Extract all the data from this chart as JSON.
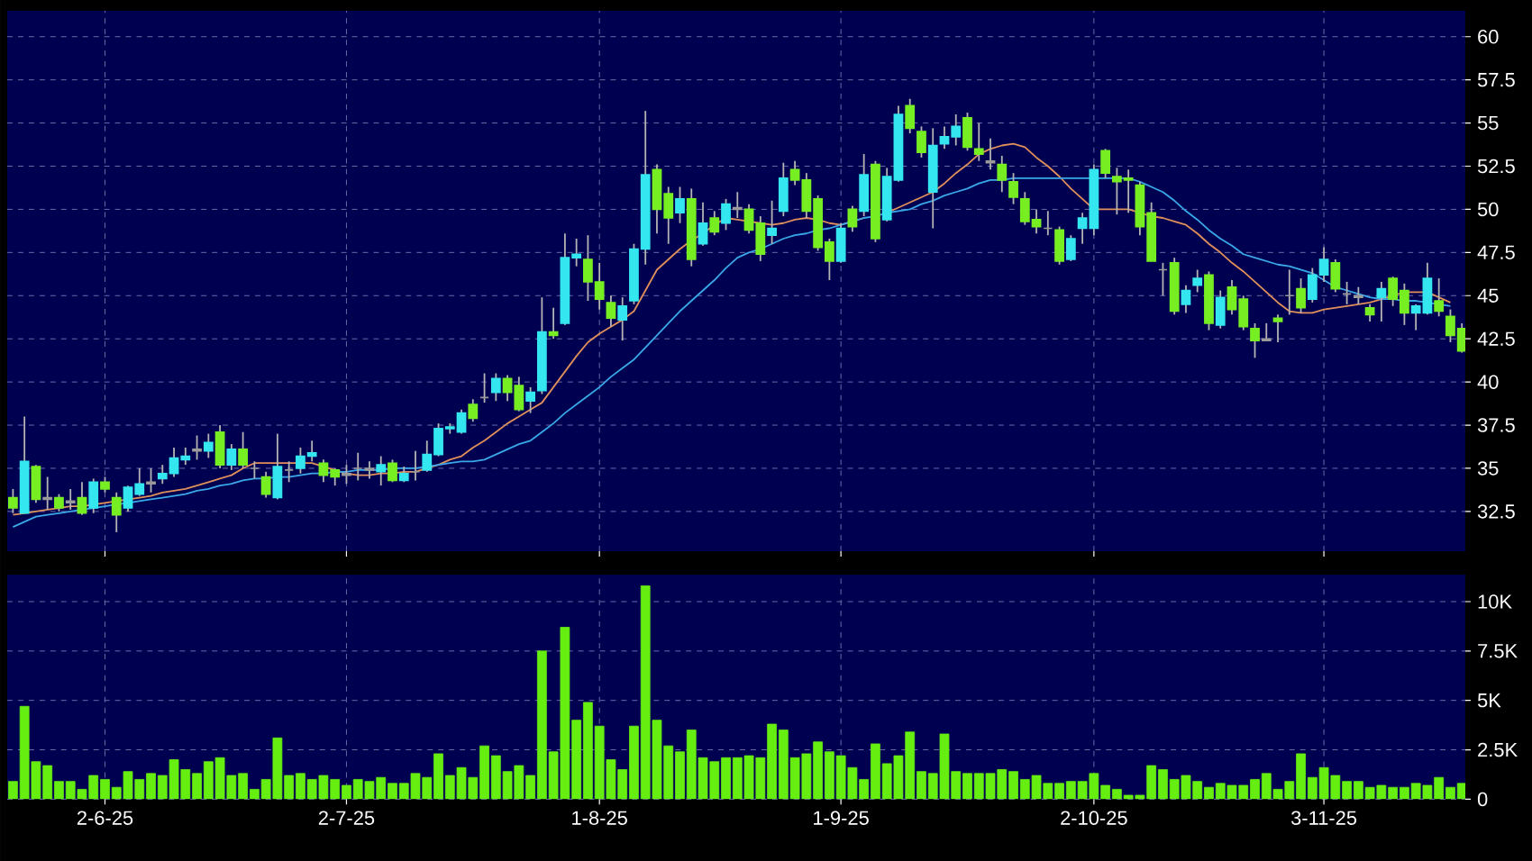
{
  "chart_data": [
    {
      "type": "candlestick",
      "tick_labels": "y",
      "grid": true,
      "categories": [
        null,
        null,
        null,
        null,
        null,
        null,
        null,
        null,
        null,
        null,
        null,
        null,
        null,
        null,
        null,
        null,
        null,
        null,
        null,
        null,
        null,
        null,
        null,
        null,
        null,
        null,
        null,
        null,
        null,
        null,
        null,
        null,
        null,
        null,
        null,
        null,
        null,
        null,
        null,
        null,
        null,
        null,
        null,
        null,
        null,
        null,
        null,
        null,
        null,
        null,
        null,
        null,
        null,
        null,
        null,
        null,
        null,
        null,
        null,
        null,
        null,
        null,
        null,
        null,
        null,
        null,
        null,
        null,
        null,
        null,
        null,
        null,
        null,
        null,
        null,
        null,
        null,
        null,
        null,
        null,
        null,
        null,
        null,
        null,
        null,
        null,
        null,
        null,
        null,
        null,
        null,
        null,
        null,
        null,
        null,
        null,
        null,
        null,
        null,
        null,
        null,
        null,
        null,
        null,
        null,
        null,
        null,
        null,
        null,
        null,
        null,
        null,
        null,
        null,
        null,
        null,
        null,
        null,
        null,
        null,
        null,
        null,
        null,
        null,
        null,
        null,
        null
      ],
      "ohlc": [
        [
          33.3,
          33.8,
          32.4,
          32.7
        ],
        [
          32.4,
          38.0,
          32.4,
          35.4
        ],
        [
          35.1,
          35.2,
          33.0,
          33.2
        ],
        [
          33.3,
          34.5,
          32.6,
          33.2
        ],
        [
          33.3,
          33.5,
          32.5,
          32.7
        ],
        [
          33.0,
          33.8,
          32.6,
          33.1
        ],
        [
          33.3,
          34.2,
          32.3,
          32.4
        ],
        [
          32.7,
          34.4,
          32.4,
          34.2
        ],
        [
          34.2,
          34.5,
          33.6,
          33.8
        ],
        [
          33.3,
          33.6,
          31.3,
          32.3
        ],
        [
          32.7,
          34.0,
          32.5,
          33.9
        ],
        [
          33.5,
          35.0,
          33.4,
          34.1
        ],
        [
          34.1,
          35.0,
          33.6,
          34.2
        ],
        [
          34.4,
          35.2,
          34.1,
          34.7
        ],
        [
          34.7,
          36.2,
          34.5,
          35.6
        ],
        [
          35.5,
          36.2,
          35.2,
          35.7
        ],
        [
          36.0,
          36.9,
          35.5,
          36.1
        ],
        [
          36.0,
          37.0,
          35.6,
          36.5
        ],
        [
          37.1,
          37.5,
          35.0,
          35.2
        ],
        [
          35.2,
          36.4,
          34.9,
          36.1
        ],
        [
          36.1,
          37.1,
          35.0,
          35.2
        ],
        [
          35.0,
          35.4,
          34.4,
          35.0
        ],
        [
          34.5,
          34.8,
          33.3,
          33.5
        ],
        [
          33.3,
          37.0,
          33.2,
          35.1
        ],
        [
          34.9,
          35.4,
          34.2,
          34.9
        ],
        [
          35.0,
          36.2,
          34.7,
          35.7
        ],
        [
          35.7,
          36.6,
          35.4,
          35.9
        ],
        [
          35.3,
          35.5,
          34.2,
          34.6
        ],
        [
          34.9,
          35.0,
          34.0,
          34.5
        ],
        [
          34.7,
          35.2,
          34.1,
          34.6
        ],
        [
          35.0,
          35.9,
          34.3,
          35.0
        ],
        [
          34.9,
          35.4,
          34.4,
          35.0
        ],
        [
          34.8,
          35.7,
          34.0,
          35.2
        ],
        [
          35.3,
          35.5,
          34.2,
          34.3
        ],
        [
          34.3,
          35.1,
          34.2,
          34.7
        ],
        [
          34.8,
          36.0,
          34.3,
          34.8
        ],
        [
          34.9,
          36.6,
          34.8,
          35.8
        ],
        [
          35.8,
          37.6,
          35.7,
          37.3
        ],
        [
          37.3,
          37.6,
          37.0,
          37.4
        ],
        [
          37.1,
          38.4,
          37.0,
          38.2
        ],
        [
          38.7,
          39.0,
          37.7,
          37.9
        ],
        [
          39.1,
          40.5,
          38.8,
          39.1
        ],
        [
          39.4,
          40.5,
          38.9,
          40.2
        ],
        [
          40.2,
          40.4,
          38.9,
          39.4
        ],
        [
          39.8,
          40.3,
          38.3,
          38.4
        ],
        [
          38.9,
          39.7,
          38.2,
          39.4
        ],
        [
          39.5,
          44.9,
          39.3,
          42.9
        ],
        [
          42.9,
          44.3,
          42.5,
          42.7
        ],
        [
          43.4,
          48.6,
          43.3,
          47.2
        ],
        [
          47.2,
          48.3,
          46.7,
          47.4
        ],
        [
          47.1,
          48.5,
          44.7,
          45.8
        ],
        [
          45.8,
          46.9,
          44.2,
          44.8
        ],
        [
          44.6,
          45.0,
          43.2,
          43.7
        ],
        [
          43.6,
          44.9,
          42.4,
          44.4
        ],
        [
          44.7,
          48.0,
          44.5,
          47.7
        ],
        [
          47.7,
          55.7,
          46.8,
          52.0
        ],
        [
          52.3,
          52.6,
          48.6,
          50.0
        ],
        [
          50.9,
          51.3,
          48.0,
          49.5
        ],
        [
          49.8,
          51.3,
          49.2,
          50.6
        ],
        [
          50.6,
          51.2,
          46.7,
          47.1
        ],
        [
          48.0,
          50.4,
          47.9,
          49.2
        ],
        [
          49.5,
          49.9,
          48.5,
          48.7
        ],
        [
          49.2,
          50.6,
          48.8,
          50.3
        ],
        [
          50.1,
          51.0,
          49.5,
          50.0
        ],
        [
          50.0,
          50.3,
          48.6,
          48.8
        ],
        [
          49.2,
          49.6,
          47.0,
          47.4
        ],
        [
          48.5,
          50.5,
          48.0,
          48.9
        ],
        [
          49.9,
          52.7,
          49.6,
          51.8
        ],
        [
          52.3,
          52.8,
          51.4,
          51.7
        ],
        [
          51.7,
          52.1,
          49.5,
          49.9
        ],
        [
          50.6,
          50.8,
          47.6,
          47.8
        ],
        [
          48.1,
          48.3,
          45.9,
          47.0
        ],
        [
          47.0,
          49.2,
          46.9,
          48.9
        ],
        [
          50.0,
          50.2,
          48.7,
          49.0
        ],
        [
          49.9,
          53.2,
          49.6,
          52.0
        ],
        [
          52.6,
          52.8,
          48.1,
          48.3
        ],
        [
          49.4,
          52.4,
          49.3,
          51.9
        ],
        [
          51.7,
          56.0,
          51.6,
          55.5
        ],
        [
          56.0,
          56.4,
          54.4,
          54.7
        ],
        [
          54.5,
          54.8,
          53.0,
          53.3
        ],
        [
          51.0,
          54.7,
          48.9,
          53.7
        ],
        [
          53.8,
          54.8,
          53.5,
          54.2
        ],
        [
          54.2,
          55.5,
          53.7,
          54.8
        ],
        [
          55.3,
          55.6,
          53.4,
          53.6
        ],
        [
          53.5,
          55.0,
          52.8,
          53.2
        ],
        [
          52.8,
          54.1,
          52.3,
          52.7
        ],
        [
          52.6,
          53.1,
          51.0,
          51.7
        ],
        [
          51.6,
          52.1,
          50.3,
          50.7
        ],
        [
          50.6,
          51.0,
          49.1,
          49.3
        ],
        [
          49.4,
          50.0,
          48.6,
          49.0
        ],
        [
          48.9,
          49.9,
          48.5,
          48.9
        ],
        [
          48.8,
          49.0,
          46.8,
          47.0
        ],
        [
          47.1,
          48.5,
          47.0,
          48.3
        ],
        [
          48.9,
          49.8,
          48.0,
          49.5
        ],
        [
          48.9,
          52.6,
          48.5,
          52.3
        ],
        [
          53.4,
          53.5,
          51.8,
          52.1
        ],
        [
          51.9,
          52.4,
          49.7,
          51.6
        ],
        [
          51.8,
          52.3,
          49.8,
          51.7
        ],
        [
          51.4,
          51.6,
          48.5,
          49.0
        ],
        [
          49.8,
          50.4,
          47.0,
          47.0
        ],
        [
          46.5,
          46.9,
          45.0,
          46.5
        ],
        [
          46.9,
          47.2,
          43.9,
          44.1
        ],
        [
          44.5,
          45.6,
          44.0,
          45.3
        ],
        [
          45.6,
          46.5,
          45.2,
          46.0
        ],
        [
          46.2,
          46.4,
          43.0,
          43.4
        ],
        [
          43.3,
          45.3,
          43.1,
          44.9
        ],
        [
          45.5,
          45.9,
          43.9,
          44.2
        ],
        [
          44.8,
          45.0,
          43.0,
          43.2
        ],
        [
          43.1,
          43.4,
          41.4,
          42.4
        ],
        [
          42.4,
          43.4,
          42.4,
          42.5
        ],
        [
          43.7,
          43.9,
          42.3,
          43.5
        ],
        [
          45.0,
          46.5,
          43.9,
          45.0
        ],
        [
          45.4,
          46.0,
          44.0,
          44.3
        ],
        [
          44.8,
          46.6,
          44.6,
          46.2
        ],
        [
          46.2,
          47.8,
          45.8,
          47.1
        ],
        [
          46.9,
          47.1,
          45.2,
          45.4
        ],
        [
          45.1,
          45.8,
          44.5,
          45.1
        ],
        [
          45.0,
          45.5,
          44.5,
          44.9
        ],
        [
          44.3,
          44.5,
          43.5,
          43.9
        ],
        [
          44.9,
          45.8,
          43.5,
          45.4
        ],
        [
          46.0,
          46.1,
          44.4,
          44.8
        ],
        [
          45.3,
          45.7,
          43.3,
          44.0
        ],
        [
          44.0,
          44.5,
          43.0,
          44.4
        ],
        [
          44.0,
          46.9,
          43.9,
          46.0
        ],
        [
          44.7,
          46.0,
          43.8,
          44.1
        ],
        [
          43.8,
          44.2,
          42.3,
          42.7
        ],
        [
          43.1,
          43.4,
          41.7,
          41.8
        ]
      ],
      "colors": [
        "#77ee22",
        "#33e6f0",
        "#77ee22",
        "#9a9a9a",
        "#77ee22",
        "#9a9a9a",
        "#77ee22",
        "#33e6f0",
        "#77ee22",
        "#77ee22",
        "#33e6f0",
        "#33e6f0",
        "#9a9a9a",
        "#33e6f0",
        "#33e6f0",
        "#33e6f0",
        "#9a9a9a",
        "#33e6f0",
        "#77ee22",
        "#33e6f0",
        "#77ee22",
        "#9a9a9a",
        "#77ee22",
        "#33e6f0",
        "#9a9a9a",
        "#33e6f0",
        "#33e6f0",
        "#77ee22",
        "#77ee22",
        "#9a9a9a",
        "#9a9a9a",
        "#9a9a9a",
        "#33e6f0",
        "#77ee22",
        "#33e6f0",
        "#9a9a9a",
        "#33e6f0",
        "#33e6f0",
        "#33e6f0",
        "#33e6f0",
        "#77ee22",
        "#9a9a9a",
        "#33e6f0",
        "#77ee22",
        "#77ee22",
        "#33e6f0",
        "#33e6f0",
        "#77ee22",
        "#33e6f0",
        "#33e6f0",
        "#77ee22",
        "#77ee22",
        "#77ee22",
        "#33e6f0",
        "#33e6f0",
        "#33e6f0",
        "#77ee22",
        "#77ee22",
        "#33e6f0",
        "#77ee22",
        "#33e6f0",
        "#77ee22",
        "#33e6f0",
        "#9a9a9a",
        "#77ee22",
        "#77ee22",
        "#33e6f0",
        "#33e6f0",
        "#77ee22",
        "#77ee22",
        "#77ee22",
        "#77ee22",
        "#33e6f0",
        "#77ee22",
        "#33e6f0",
        "#77ee22",
        "#33e6f0",
        "#33e6f0",
        "#77ee22",
        "#77ee22",
        "#33e6f0",
        "#33e6f0",
        "#33e6f0",
        "#77ee22",
        "#77ee22",
        "#9a9a9a",
        "#77ee22",
        "#77ee22",
        "#77ee22",
        "#77ee22",
        "#9a9a9a",
        "#77ee22",
        "#33e6f0",
        "#33e6f0",
        "#33e6f0",
        "#77ee22",
        "#77ee22",
        "#77ee22",
        "#77ee22",
        "#77ee22",
        "#9a9a9a",
        "#77ee22",
        "#33e6f0",
        "#33e6f0",
        "#77ee22",
        "#33e6f0",
        "#77ee22",
        "#77ee22",
        "#77ee22",
        "#9a9a9a",
        "#77ee22",
        "#9a9a9a",
        "#77ee22",
        "#33e6f0",
        "#33e6f0",
        "#77ee22",
        "#9a9a9a",
        "#9a9a9a",
        "#77ee22",
        "#33e6f0",
        "#77ee22",
        "#77ee22",
        "#33e6f0",
        "#33e6f0",
        "#77ee22",
        "#77ee22",
        "#77ee22"
      ],
      "series": [
        {
          "type": "line",
          "color": "#e0905a",
          "values": [
            32.3,
            32.4,
            32.5,
            32.6,
            32.7,
            32.8,
            32.8,
            32.9,
            33.0,
            33.1,
            33.2,
            33.3,
            33.4,
            33.6,
            33.7,
            33.8,
            34.0,
            34.2,
            34.4,
            34.6,
            35.0,
            35.3,
            35.3,
            35.3,
            35.3,
            35.3,
            35.3,
            35.1,
            34.9,
            34.7,
            34.6,
            34.6,
            34.7,
            34.7,
            34.8,
            34.8,
            35.0,
            35.2,
            35.5,
            35.7,
            36.2,
            36.6,
            37.1,
            37.6,
            38.0,
            38.4,
            38.8,
            39.7,
            40.6,
            41.5,
            42.3,
            42.8,
            43.2,
            43.6,
            44.1,
            45.3,
            46.5,
            47.1,
            47.7,
            48.2,
            48.6,
            49.1,
            49.5,
            49.4,
            49.3,
            49.2,
            49.1,
            49.2,
            49.4,
            49.5,
            49.4,
            49.2,
            49.1,
            49.3,
            49.5,
            null,
            49.8,
            50.1,
            50.4,
            50.7,
            51.0,
            51.5,
            52.1,
            52.6,
            53.2,
            53.5,
            53.7,
            53.8,
            53.6,
            53.0,
            52.5,
            51.9,
            51.2,
            50.6,
            50.0,
            50.0,
            50.0,
            50.0,
            49.8,
            49.6,
            49.5,
            49.3,
            49.1,
            48.6,
            48.0,
            47.5,
            46.9,
            46.4,
            45.8,
            45.2,
            44.6,
            44.1,
            44.0,
            44.0,
            44.2,
            44.3,
            44.4,
            44.5,
            44.6,
            44.8,
            45.0,
            45.2,
            45.2,
            45.2,
            44.9,
            44.6,
            null
          ]
        },
        {
          "type": "line",
          "color": "#3aa8e8",
          "values": [
            31.6,
            31.9,
            32.2,
            32.3,
            32.4,
            32.5,
            32.6,
            32.7,
            32.8,
            32.9,
            33.0,
            33.1,
            33.2,
            33.3,
            33.4,
            33.5,
            33.7,
            33.8,
            34.0,
            34.1,
            34.3,
            34.4,
            34.4,
            34.5,
            34.5,
            34.6,
            34.7,
            34.7,
            34.8,
            34.8,
            34.9,
            34.9,
            34.9,
            35.0,
            35.0,
            35.0,
            35.1,
            35.2,
            35.3,
            35.4,
            35.4,
            35.5,
            35.8,
            36.1,
            36.4,
            36.6,
            37.1,
            37.6,
            38.2,
            38.7,
            39.2,
            39.7,
            40.3,
            40.8,
            41.3,
            42.0,
            42.7,
            43.4,
            44.1,
            44.7,
            45.3,
            45.9,
            46.6,
            47.2,
            47.5,
            47.7,
            48.0,
            48.3,
            48.5,
            48.6,
            48.8,
            48.9,
            49.1,
            49.3,
            49.5,
            49.6,
            49.8,
            49.9,
            50.0,
            50.3,
            50.5,
            50.8,
            51.0,
            51.2,
            51.5,
            51.7,
            51.7,
            51.8,
            51.8,
            51.8,
            51.8,
            51.8,
            51.8,
            51.8,
            51.8,
            51.8,
            51.8,
            51.8,
            51.6,
            51.3,
            51.0,
            50.5,
            49.9,
            49.4,
            48.8,
            48.3,
            47.9,
            47.4,
            47.2,
            47.0,
            46.8,
            46.7,
            46.5,
            46.3,
            45.9,
            45.5,
            45.3,
            45.1,
            44.9,
            44.8,
            44.8,
            44.7,
            44.7,
            44.6,
            44.5,
            44.4,
            null
          ]
        }
      ],
      "ylim": [
        30.2,
        61.5
      ],
      "yticks": [
        32.5,
        35,
        37.5,
        40,
        42.5,
        45,
        47.5,
        50,
        52.5,
        55,
        57.5,
        60
      ]
    },
    {
      "type": "bar",
      "grid": true,
      "color": "#66ee11",
      "categories": [
        null,
        null,
        null,
        null,
        null,
        null,
        null,
        null,
        "2-6-25",
        null,
        null,
        null,
        null,
        null,
        null,
        null,
        null,
        null,
        null,
        null,
        null,
        null,
        null,
        null,
        null,
        null,
        null,
        null,
        null,
        "2-7-25",
        null,
        null,
        null,
        null,
        null,
        null,
        null,
        null,
        null,
        null,
        null,
        null,
        null,
        null,
        null,
        null,
        null,
        null,
        null,
        null,
        null,
        "1-8-25",
        null,
        null,
        null,
        null,
        null,
        null,
        null,
        null,
        null,
        null,
        null,
        null,
        null,
        null,
        null,
        null,
        null,
        null,
        null,
        null,
        "1-9-25",
        null,
        null,
        null,
        null,
        null,
        null,
        null,
        null,
        null,
        null,
        null,
        null,
        null,
        null,
        null,
        null,
        null,
        null,
        null,
        null,
        null,
        "2-10-25",
        null,
        null,
        null,
        null,
        null,
        null,
        null,
        null,
        null,
        null,
        null,
        null,
        null,
        null,
        null,
        null,
        null,
        null,
        null,
        "3-11-25",
        null,
        null,
        null,
        null,
        null,
        null,
        null,
        null,
        null,
        null,
        null,
        null
      ],
      "values": [
        900,
        4700,
        1900,
        1700,
        900,
        900,
        500,
        1200,
        1000,
        600,
        1400,
        1000,
        1300,
        1200,
        2000,
        1500,
        1300,
        1900,
        2100,
        1200,
        1300,
        500,
        1000,
        3100,
        1200,
        1300,
        1000,
        1200,
        1000,
        700,
        1000,
        900,
        1100,
        800,
        800,
        1300,
        1100,
        2300,
        1200,
        1600,
        1100,
        2700,
        2200,
        1400,
        1700,
        1200,
        7500,
        2400,
        8700,
        4000,
        4900,
        3700,
        2000,
        1500,
        3700,
        10800,
        4000,
        2700,
        2400,
        3500,
        2100,
        1900,
        2100,
        2100,
        2200,
        2100,
        3800,
        3500,
        2100,
        2300,
        2900,
        2400,
        2200,
        1600,
        1000,
        2800,
        1800,
        2200,
        3400,
        1400,
        1300,
        3300,
        1400,
        1300,
        1300,
        1300,
        1500,
        1400,
        1000,
        1200,
        800,
        800,
        900,
        900,
        1300,
        700,
        500,
        200,
        200,
        1700,
        1500,
        1000,
        1200,
        900,
        600,
        800,
        700,
        700,
        1000,
        1300,
        500,
        900,
        2300,
        1100,
        1600,
        1200,
        900,
        900,
        600,
        700,
        600,
        600,
        800,
        700,
        1100,
        600,
        800
      ],
      "ylim": [
        0,
        11370
      ],
      "yticks": [
        0,
        {
          "value": 2500,
          "label": "2.5K"
        },
        {
          "value": 5000,
          "label": "5K"
        },
        {
          "value": 7500,
          "label": "7.5K"
        },
        {
          "value": 10000,
          "label": "10K"
        }
      ]
    }
  ]
}
